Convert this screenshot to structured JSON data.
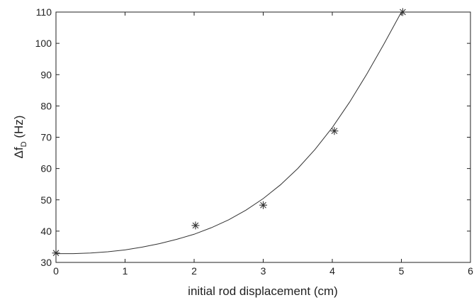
{
  "chart_data": {
    "type": "scatter",
    "title": "",
    "xlabel": "initial rod displacement  (cm)",
    "ylabel": "Δf",
    "ylabel_subscript": "D",
    "ylabel_unit": "(Hz)",
    "xlim": [
      0,
      6
    ],
    "ylim": [
      30,
      110
    ],
    "x_ticks": [
      0,
      1,
      2,
      3,
      4,
      5,
      6
    ],
    "y_ticks": [
      30,
      40,
      50,
      60,
      70,
      80,
      90,
      100,
      110
    ],
    "grid": false,
    "legend": "none",
    "series": [
      {
        "style": "asterisk-markers",
        "color": "#333333",
        "x": [
          0,
          2.02,
          3.0,
          4.03,
          5.02
        ],
        "y": [
          33,
          41.8,
          48.3,
          72,
          110
        ]
      },
      {
        "style": "line",
        "color": "#333333",
        "x": [
          0,
          0.25,
          0.5,
          0.75,
          1.0,
          1.25,
          1.5,
          1.75,
          2.0,
          2.25,
          2.5,
          2.75,
          3.0,
          3.25,
          3.5,
          3.75,
          4.0,
          4.25,
          4.5,
          4.75,
          5.0
        ],
        "y": [
          32.8,
          32.8,
          33.0,
          33.4,
          34.0,
          34.9,
          36.0,
          37.4,
          39.0,
          41.1,
          43.6,
          46.7,
          50.4,
          54.8,
          60.0,
          66.1,
          73.1,
          81.2,
          90.2,
          99.9,
          110.0
        ]
      }
    ]
  }
}
